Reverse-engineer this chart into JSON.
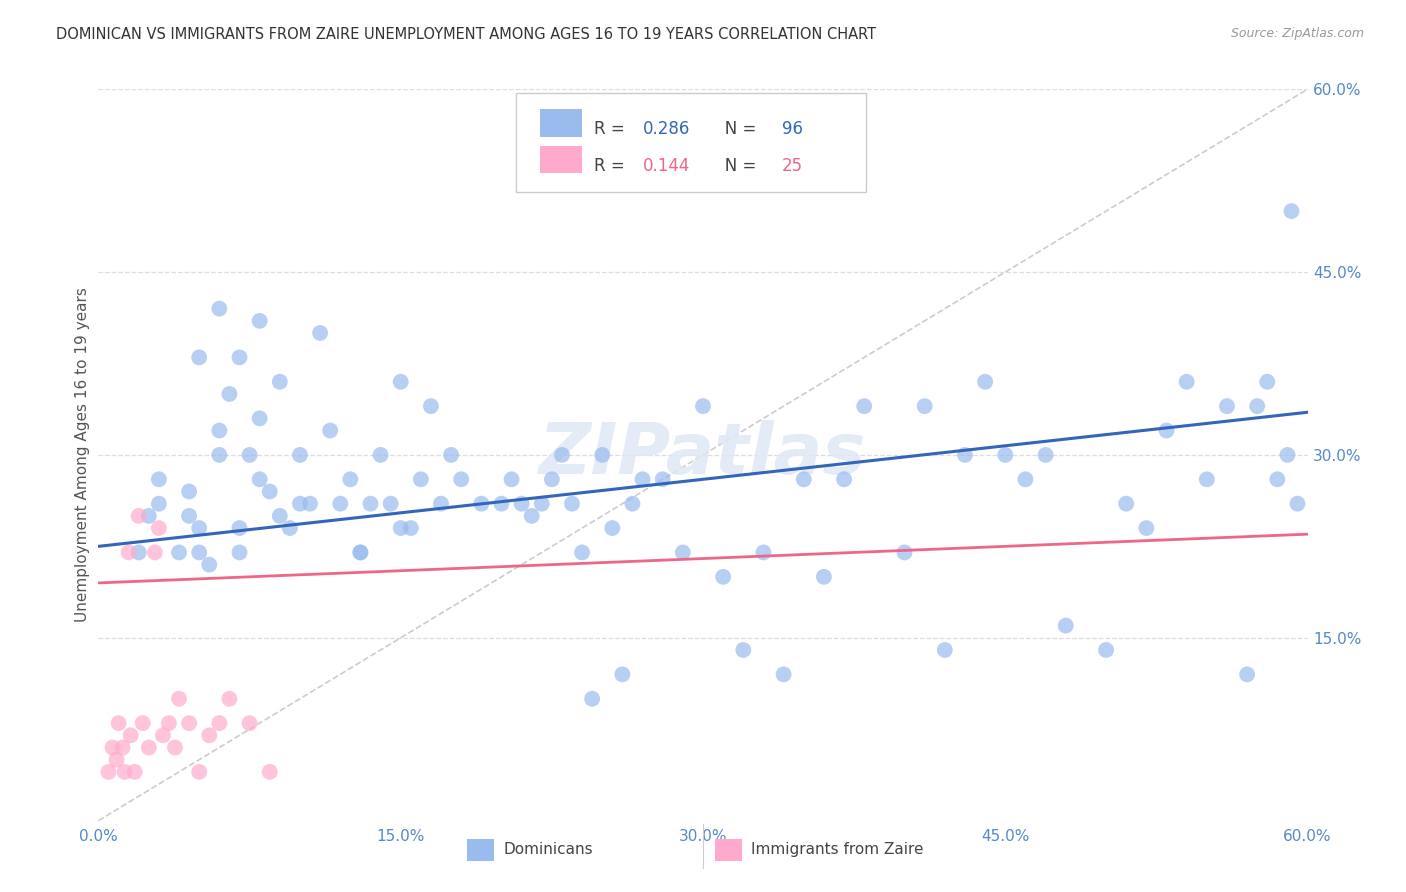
{
  "title": "DOMINICAN VS IMMIGRANTS FROM ZAIRE UNEMPLOYMENT AMONG AGES 16 TO 19 YEARS CORRELATION CHART",
  "source": "Source: ZipAtlas.com",
  "ylabel": "Unemployment Among Ages 16 to 19 years",
  "xlim": [
    0.0,
    0.6
  ],
  "ylim": [
    0.0,
    0.6
  ],
  "xticks": [
    0.0,
    0.15,
    0.3,
    0.45,
    0.6
  ],
  "xticklabels": [
    "0.0%",
    "15.0%",
    "30.0%",
    "45.0%",
    "60.0%"
  ],
  "yticks_right": [
    0.15,
    0.3,
    0.45,
    0.6
  ],
  "yticklabels_right": [
    "15.0%",
    "30.0%",
    "45.0%",
    "60.0%"
  ],
  "blue_scatter_color": "#99bbee",
  "pink_scatter_color": "#ffaacc",
  "blue_line_color": "#3366bb",
  "pink_line_color": "#ee6688",
  "diagonal_color": "#cccccc",
  "grid_color": "#dddddd",
  "axis_tick_color": "#5588cc",
  "watermark": "ZIPatlas",
  "blue_R": 0.286,
  "blue_N": 96,
  "pink_R": 0.144,
  "pink_N": 25,
  "blue_line_start_y": 0.225,
  "blue_line_end_y": 0.335,
  "pink_line_start_y": 0.195,
  "pink_line_end_y": 0.235,
  "blue_x": [
    0.02,
    0.025,
    0.03,
    0.03,
    0.04,
    0.045,
    0.045,
    0.05,
    0.05,
    0.055,
    0.06,
    0.06,
    0.065,
    0.07,
    0.07,
    0.075,
    0.08,
    0.08,
    0.085,
    0.09,
    0.09,
    0.095,
    0.1,
    0.1,
    0.105,
    0.11,
    0.115,
    0.12,
    0.125,
    0.13,
    0.135,
    0.14,
    0.145,
    0.15,
    0.155,
    0.16,
    0.165,
    0.17,
    0.175,
    0.18,
    0.19,
    0.2,
    0.205,
    0.21,
    0.215,
    0.22,
    0.225,
    0.23,
    0.235,
    0.24,
    0.245,
    0.25,
    0.255,
    0.26,
    0.265,
    0.27,
    0.28,
    0.29,
    0.3,
    0.31,
    0.32,
    0.33,
    0.34,
    0.35,
    0.36,
    0.37,
    0.38,
    0.4,
    0.41,
    0.42,
    0.43,
    0.44,
    0.45,
    0.46,
    0.47,
    0.48,
    0.5,
    0.51,
    0.52,
    0.53,
    0.54,
    0.55,
    0.56,
    0.57,
    0.575,
    0.58,
    0.585,
    0.59,
    0.592,
    0.595,
    0.05,
    0.06,
    0.07,
    0.08,
    0.13,
    0.15
  ],
  "blue_y": [
    0.22,
    0.25,
    0.26,
    0.28,
    0.22,
    0.25,
    0.27,
    0.22,
    0.24,
    0.21,
    0.3,
    0.32,
    0.35,
    0.22,
    0.24,
    0.3,
    0.28,
    0.33,
    0.27,
    0.25,
    0.36,
    0.24,
    0.26,
    0.3,
    0.26,
    0.4,
    0.32,
    0.26,
    0.28,
    0.22,
    0.26,
    0.3,
    0.26,
    0.36,
    0.24,
    0.28,
    0.34,
    0.26,
    0.3,
    0.28,
    0.26,
    0.26,
    0.28,
    0.26,
    0.25,
    0.26,
    0.28,
    0.3,
    0.26,
    0.22,
    0.1,
    0.3,
    0.24,
    0.12,
    0.26,
    0.28,
    0.28,
    0.22,
    0.34,
    0.2,
    0.14,
    0.22,
    0.12,
    0.28,
    0.2,
    0.28,
    0.34,
    0.22,
    0.34,
    0.14,
    0.3,
    0.36,
    0.3,
    0.28,
    0.3,
    0.16,
    0.14,
    0.26,
    0.24,
    0.32,
    0.36,
    0.28,
    0.34,
    0.12,
    0.34,
    0.36,
    0.28,
    0.3,
    0.5,
    0.26,
    0.38,
    0.42,
    0.38,
    0.41,
    0.22,
    0.24
  ],
  "pink_x": [
    0.005,
    0.007,
    0.009,
    0.01,
    0.012,
    0.013,
    0.015,
    0.016,
    0.018,
    0.02,
    0.022,
    0.025,
    0.028,
    0.03,
    0.032,
    0.035,
    0.038,
    0.04,
    0.045,
    0.05,
    0.055,
    0.06,
    0.065,
    0.075,
    0.085
  ],
  "pink_y": [
    0.04,
    0.06,
    0.05,
    0.08,
    0.06,
    0.04,
    0.22,
    0.07,
    0.04,
    0.25,
    0.08,
    0.06,
    0.22,
    0.24,
    0.07,
    0.08,
    0.06,
    0.1,
    0.08,
    0.04,
    0.07,
    0.08,
    0.1,
    0.08,
    0.04
  ]
}
